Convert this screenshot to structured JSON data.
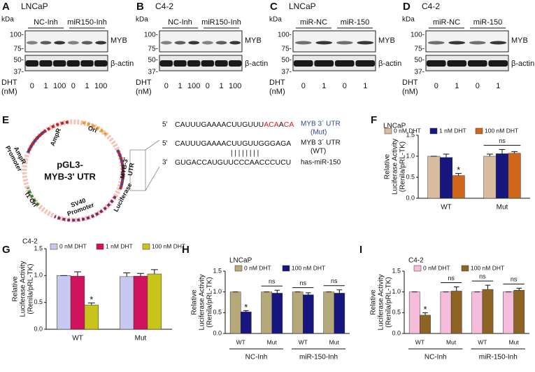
{
  "blots": [
    {
      "letter": "A",
      "cell": "LNCaP",
      "groups": [
        "NC-Inh",
        "miR150-Inh"
      ],
      "kda": "kDa",
      "markers": [
        "100-",
        "75-",
        "50-",
        "37-"
      ],
      "bands": [
        "MYB",
        "β-actin"
      ],
      "dht": "DHT",
      "unit": "(nM)",
      "doses": [
        "0",
        "1",
        "100",
        "0",
        "1",
        "100"
      ]
    },
    {
      "letter": "B",
      "cell": "C4-2",
      "groups": [
        "NC-Inh",
        "miR150-Inh"
      ],
      "kda": "kDa",
      "markers": [
        "100-",
        "75-",
        "50-",
        "37-"
      ],
      "bands": [
        "MYB",
        "β-actin"
      ],
      "dht": "DHT",
      "unit": "(nM)",
      "doses": [
        "0",
        "1",
        "100",
        "0",
        "1",
        "100"
      ]
    },
    {
      "letter": "C",
      "cell": "LNCaP",
      "groups": [
        "miR-NC",
        "miR-150"
      ],
      "kda": "kDa",
      "markers": [
        "100-",
        "75-",
        "50-",
        "37-"
      ],
      "bands": [
        "MYB",
        "β-actin"
      ],
      "dht": "DHT",
      "unit": "(nM)",
      "doses": [
        "0",
        "1",
        "0",
        "1"
      ]
    },
    {
      "letter": "D",
      "cell": "C4-2",
      "groups": [
        "miR-NC",
        "miR-150"
      ],
      "kda": "kDa",
      "markers": [
        "100-",
        "75-",
        "50-",
        "37-"
      ],
      "bands": [
        "MYB",
        "β-actin"
      ],
      "dht": "DHT",
      "unit": "(nM)",
      "doses": [
        "0",
        "1",
        "0",
        "1"
      ]
    }
  ],
  "plasmid": {
    "letter": "E",
    "name": [
      "pGL3-",
      "MYB-3' UTR"
    ],
    "features": [
      [
        "AmpR",
        "Promoter"
      ],
      [
        "AmpR"
      ],
      [
        "Ori"
      ],
      [
        "MYB-3'",
        "UTR"
      ],
      [
        "Luciferase"
      ],
      [
        "SV40",
        "Promoter"
      ],
      [
        "f1 Ori"
      ]
    ],
    "mut": {
      "end": "5'",
      "parts": [
        "CAUUUGAAAACUUGUUU",
        "ACA",
        "A",
        "CA"
      ],
      "label": [
        "MYB 3´ UTR",
        "(Mut)"
      ]
    },
    "wt": {
      "end": "5'",
      "text": "CAUUUGAAAACUUGUUGGGAGA",
      "label": [
        "MYB 3´ UTR",
        "(WT)"
      ]
    },
    "pairing": "| | | | | | | |",
    "mir": {
      "end": "3'",
      "text": "GUGACCAUGUUCCCAACCCUCU",
      "label": "has-miR-150"
    }
  },
  "chart_data": [
    {
      "type": "bar",
      "letter": "F",
      "title": "LNCaP",
      "ylabel": [
        "Relative",
        "Luciferase Activity",
        "(Renila/pRL-TK)"
      ],
      "categories": [
        "WT",
        "Mut"
      ],
      "series": [
        {
          "name": "0 nM DHT",
          "color": "#d9bba0",
          "values": [
            1,
            1
          ],
          "errors": [
            0,
            0.05
          ]
        },
        {
          "name": "1 nM DHT",
          "color": "#16167e",
          "values": [
            0.97,
            1.06
          ],
          "errors": [
            0.08,
            0.1
          ]
        },
        {
          "name": "100 nM DHT",
          "color": "#d0661c",
          "values": [
            0.54,
            1.07
          ],
          "errors": [
            0.05,
            0.04
          ]
        }
      ],
      "ylim": [
        0,
        1.5
      ],
      "yticks": [
        {
          "value": 0,
          "label": "0.0"
        },
        {
          "value": 0.5,
          "label": "0.5"
        },
        {
          "value": 1,
          "label": "1.0"
        },
        {
          "value": 1.5,
          "label": "1.5"
        }
      ],
      "annotations": [
        "*",
        "ns"
      ]
    },
    {
      "type": "bar",
      "letter": "G",
      "title": "C4-2",
      "ylabel": [
        "Relative",
        "Luciferase Activity",
        "(Renila/pRL-TK)"
      ],
      "categories": [
        "WT",
        "Mut"
      ],
      "series": [
        {
          "name": "0 nM DHT",
          "color": "#c9c8f2",
          "values": [
            1,
            0.98
          ],
          "errors": [
            0,
            0.07
          ]
        },
        {
          "name": "1 nM DHT",
          "color": "#d0135c",
          "values": [
            0.99,
            0.99
          ],
          "errors": [
            0.08,
            0.05
          ]
        },
        {
          "name": "100 nM DHT",
          "color": "#c8c41c",
          "values": [
            0.45,
            1.03
          ],
          "errors": [
            0.04,
            0.08
          ]
        }
      ],
      "ylim": [
        0,
        1.5
      ],
      "yticks": [
        {
          "value": 0,
          "label": "0.0"
        },
        {
          "value": 0.5,
          "label": "0.5"
        },
        {
          "value": 1,
          "label": "1.0"
        },
        {
          "value": 1.5,
          "label": "1.5"
        }
      ],
      "annotations": [
        "*"
      ]
    },
    {
      "type": "bar",
      "letter": "H",
      "title": "LNCaP",
      "ylabel": [
        "Relative",
        "Luciferase Activity",
        "(Renila/pRL-TK)"
      ],
      "categories": [
        "WT",
        "Mut",
        "WT",
        "Mut"
      ],
      "groups": [
        "NC-Inh",
        "miR-150-Inh"
      ],
      "series": [
        {
          "name": "0 nM DHT",
          "color": "#b5a97a",
          "values": [
            1,
            1,
            1,
            1
          ],
          "errors": [
            0,
            0,
            0,
            0
          ]
        },
        {
          "name": "100 nM DHT",
          "color": "#16167e",
          "values": [
            0.52,
            0.97,
            0.93,
            0.97
          ],
          "errors": [
            0.03,
            0.07,
            0.05,
            0.08
          ]
        }
      ],
      "ylim": [
        0,
        1.5
      ],
      "yticks": [
        {
          "value": 0,
          "label": "0.0"
        },
        {
          "value": 0.5,
          "label": "0.5"
        },
        {
          "value": 1,
          "label": "1.0"
        },
        {
          "value": 1.5,
          "label": "1.5"
        }
      ],
      "annotations": [
        "*",
        "ns",
        "ns",
        "ns"
      ]
    },
    {
      "type": "bar",
      "letter": "I",
      "title": "C4-2",
      "ylabel": [
        "Relative",
        "Luciferase Activity",
        "(Renila/pRL-TK)"
      ],
      "categories": [
        "WT",
        "Mut",
        "WT",
        "Mut"
      ],
      "groups": [
        "NC-Inh",
        "miR-150-Inh"
      ],
      "series": [
        {
          "name": "0 nM DHT",
          "color": "#f6bcdc",
          "values": [
            1,
            1,
            1,
            1
          ],
          "errors": [
            0,
            0,
            0,
            0
          ]
        },
        {
          "name": "100 nM DHT",
          "color": "#8e6424",
          "values": [
            0.44,
            1.02,
            1.06,
            1.04
          ],
          "errors": [
            0.06,
            0.1,
            0.1,
            0.05
          ]
        }
      ],
      "ylim": [
        0,
        1.5
      ],
      "yticks": [
        {
          "value": 0,
          "label": "0.0"
        },
        {
          "value": 0.5,
          "label": "0.5"
        },
        {
          "value": 1,
          "label": "1.0"
        },
        {
          "value": 1.5,
          "label": "1.5"
        }
      ],
      "annotations": [
        "*",
        "ns",
        "ns",
        "ns"
      ]
    }
  ]
}
